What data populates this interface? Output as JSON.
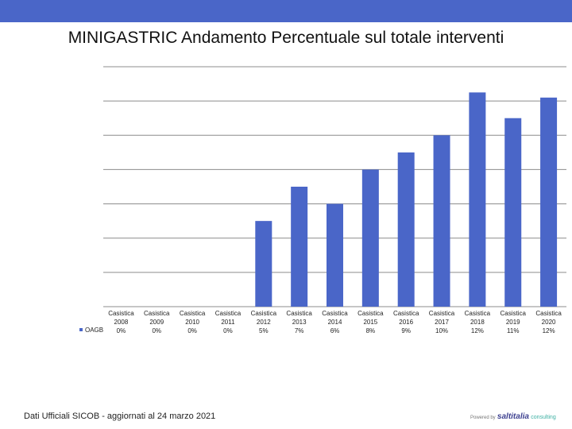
{
  "header": {
    "title": "MINIGASTRIC Andamento Percentuale sul totale interventi"
  },
  "colors": {
    "topbar": "#4a66c8",
    "bar": "#4a66c8",
    "grid": "#8c8c8c"
  },
  "footer": {
    "source": "Dati Ufficiali SICOB - aggiornati al 24 marzo 2021"
  },
  "brand": {
    "prefix": "Powered by",
    "name": "saltitalia",
    "suffix": "consulting"
  },
  "chart_data": {
    "type": "bar",
    "categories": [
      "Casistica 2008",
      "Casistica 2009",
      "Casistica 2010",
      "Casistica 2011",
      "Casistica 2012",
      "Casistica 2013",
      "Casistica 2014",
      "Casistica 2015",
      "Casistica 2016",
      "Casistica 2017",
      "Casistica 2018",
      "Casistica 2019",
      "Casistica 2020"
    ],
    "category_lines": [
      [
        "Casistica",
        "2008"
      ],
      [
        "Casistica",
        "2009"
      ],
      [
        "Casistica",
        "2010"
      ],
      [
        "Casistica",
        "2011"
      ],
      [
        "Casistica",
        "2012"
      ],
      [
        "Casistica",
        "2013"
      ],
      [
        "Casistica",
        "2014"
      ],
      [
        "Casistica",
        "2015"
      ],
      [
        "Casistica",
        "2016"
      ],
      [
        "Casistica",
        "2017"
      ],
      [
        "Casistica",
        "2018"
      ],
      [
        "Casistica",
        "2019"
      ],
      [
        "Casistica",
        "2020"
      ]
    ],
    "series": [
      {
        "name": "OAGB",
        "values": [
          0,
          0,
          0,
          0,
          5,
          7,
          6,
          8,
          9,
          10,
          12.5,
          11,
          12.2
        ],
        "labels": [
          "0%",
          "0%",
          "0%",
          "0%",
          "5%",
          "7%",
          "6%",
          "8%",
          "9%",
          "10%",
          "12%",
          "11%",
          "12%"
        ]
      }
    ],
    "ylim": [
      0,
      14
    ],
    "grid": true,
    "legend": "left of data table",
    "title": "MINIGASTRIC Andamento Percentuale sul totale interventi"
  }
}
